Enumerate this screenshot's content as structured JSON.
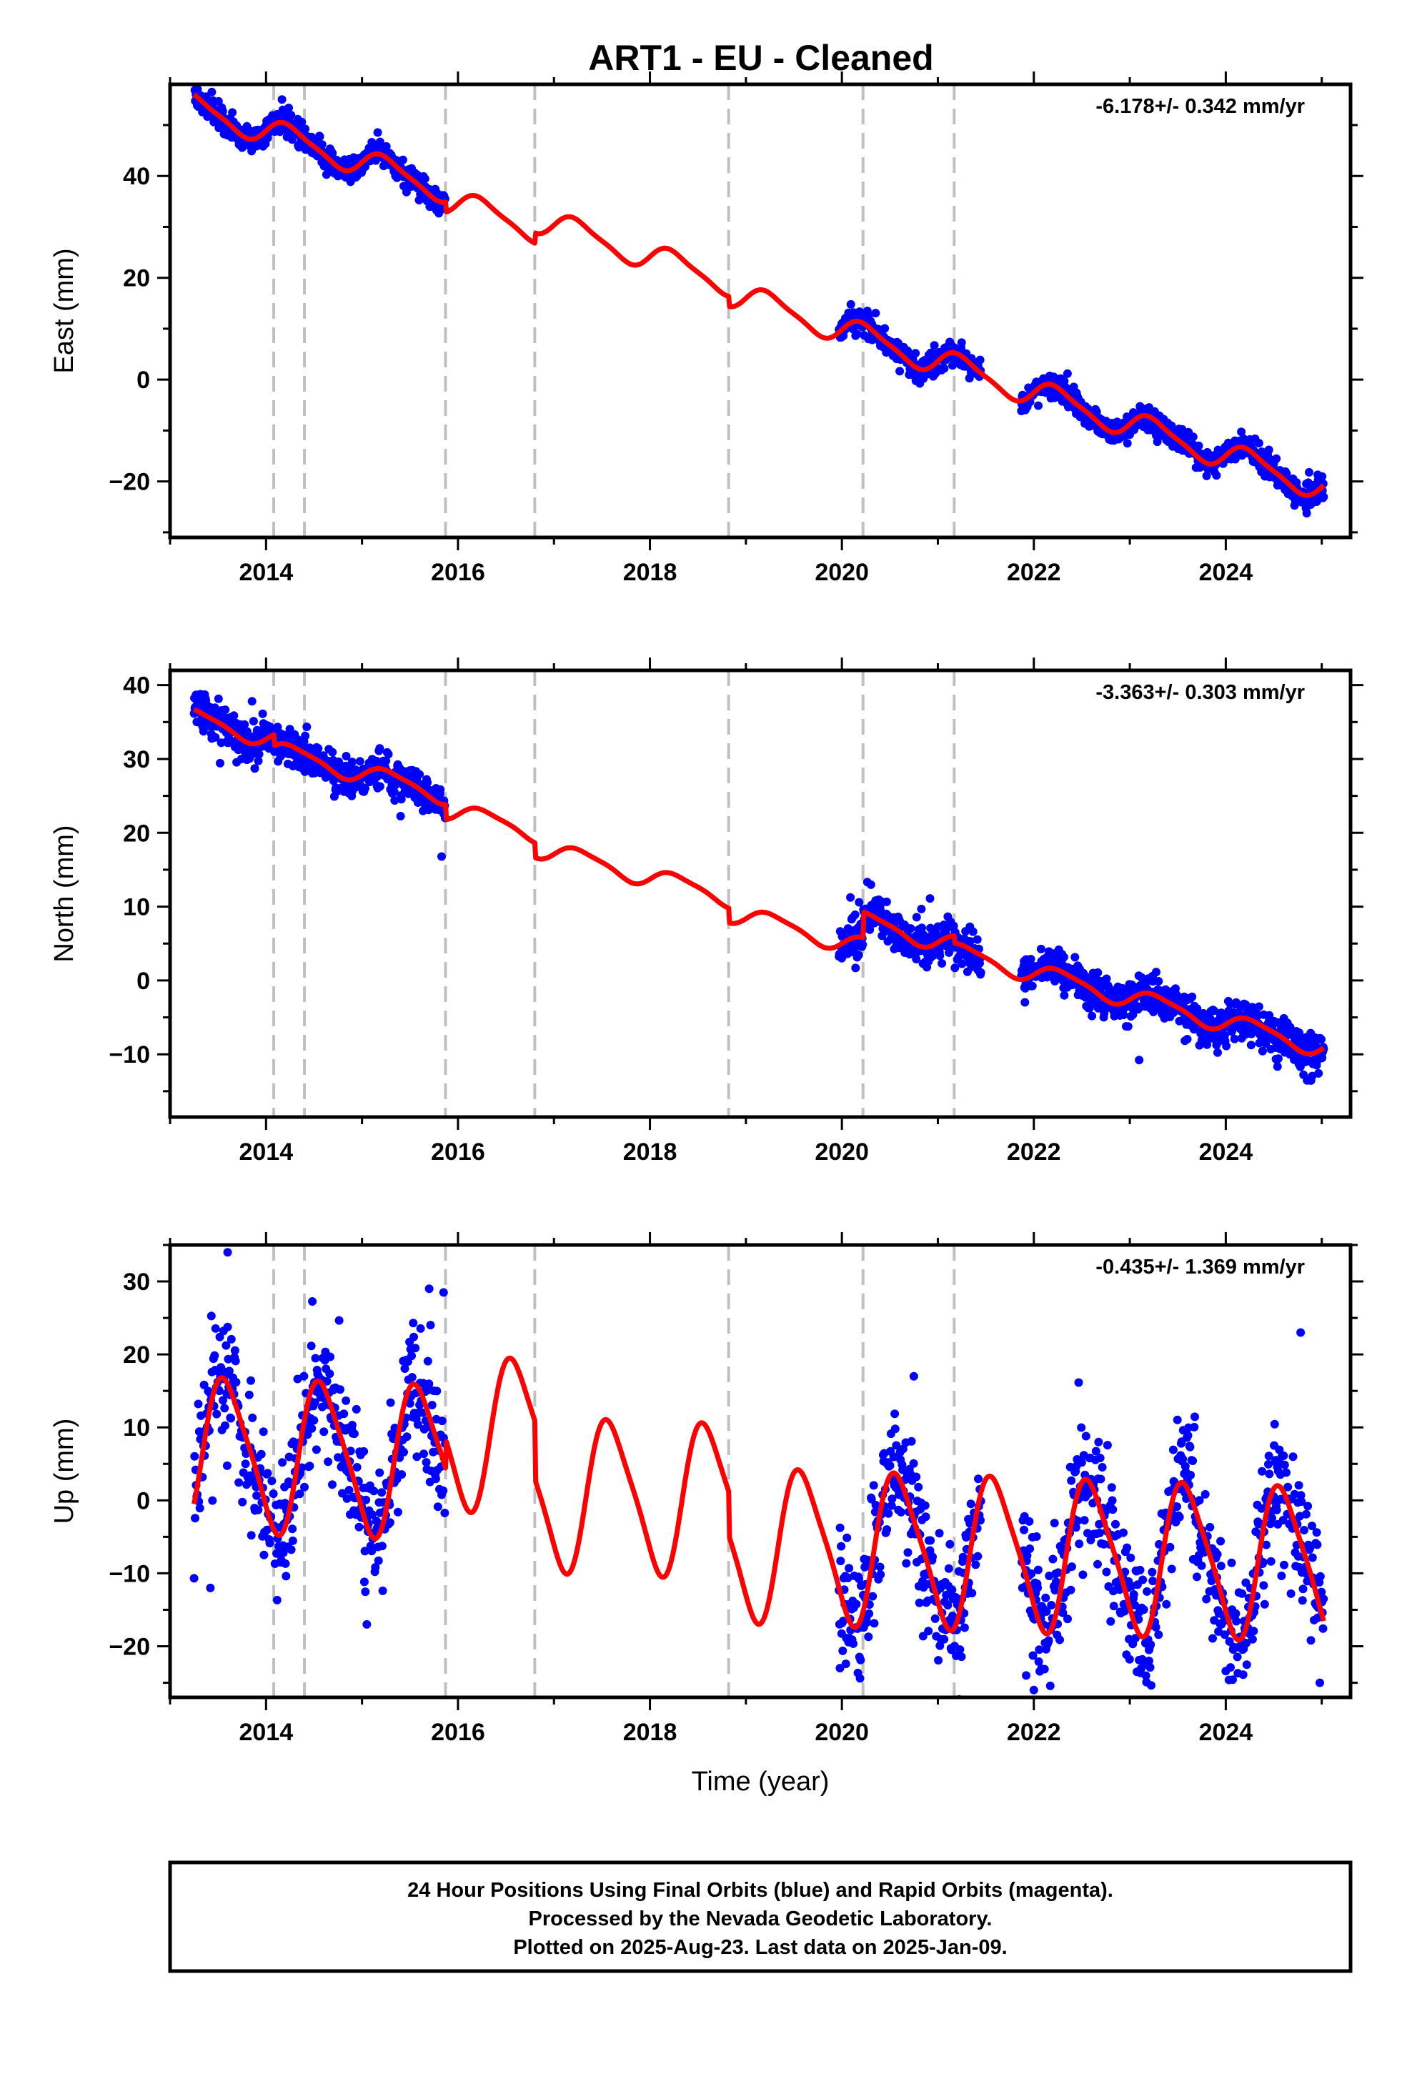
{
  "title": "ART1  - EU - Cleaned",
  "footer": {
    "lines": [
      "24 Hour Positions Using Final Orbits (blue) and Rapid Orbits (magenta).",
      "Processed by the Nevada Geodetic Laboratory.",
      "Plotted on 2025-Aug-23. Last data on 2025-Jan-09."
    ]
  },
  "colors": {
    "data": "#0000ff",
    "model": "#ff0000",
    "events": "#c0c0c0",
    "frame": "#000000"
  },
  "chart_data": [
    {
      "type": "scatter",
      "component": "east",
      "ylabel": "East (mm)",
      "xlabel": "",
      "rate_label": "-6.178+/- 0.342 mm/yr",
      "xlim": [
        2013.0,
        2025.3
      ],
      "ylim": [
        -31,
        58
      ],
      "xticks": [
        2014,
        2016,
        2018,
        2020,
        2022,
        2024
      ],
      "yticks": [
        -20,
        0,
        20,
        40
      ],
      "event_lines": [
        2014.08,
        2014.4,
        2015.87,
        2016.8,
        2018.82,
        2020.22,
        2021.17
      ],
      "data_segments": [
        [
          2013.25,
          2015.87
        ],
        [
          2019.97,
          2021.45
        ],
        [
          2021.87,
          2025.02
        ]
      ],
      "model": {
        "start": 2013.25,
        "end": 2025.02,
        "ref_epoch": 2013.25,
        "intercept": 53.5,
        "rate": -6.178,
        "annual_cos": 0.0,
        "annual_sin": 2.5,
        "semiannual_cos": 0.0,
        "semiannual_sin": 0.6,
        "offsets": [
          {
            "t": 2015.87,
            "d": -2
          },
          {
            "t": 2016.8,
            "d": 2
          },
          {
            "t": 2018.82,
            "d": -2
          }
        ]
      },
      "scatter_sigma": 1.2,
      "outliers": []
    },
    {
      "type": "scatter",
      "component": "north",
      "ylabel": "North (mm)",
      "xlabel": "",
      "rate_label": "-3.363+/- 0.303 mm/yr",
      "xlim": [
        2013.0,
        2025.3
      ],
      "ylim": [
        -18.5,
        42
      ],
      "xticks": [
        2014,
        2016,
        2018,
        2020,
        2022,
        2024
      ],
      "yticks": [
        -10,
        0,
        10,
        20,
        30,
        40
      ],
      "event_lines": [
        2014.08,
        2014.4,
        2015.87,
        2016.8,
        2018.82,
        2020.22,
        2021.17
      ],
      "data_segments": [
        [
          2013.25,
          2015.87
        ],
        [
          2019.97,
          2021.45
        ],
        [
          2021.87,
          2025.02
        ]
      ],
      "model": {
        "start": 2013.25,
        "end": 2025.02,
        "ref_epoch": 2013.25,
        "intercept": 35.5,
        "rate": -3.363,
        "annual_cos": -0.3,
        "annual_sin": 1.2,
        "semiannual_cos": 0.0,
        "semiannual_sin": 0.3,
        "offsets": [
          {
            "t": 2014.08,
            "d": -1.5
          },
          {
            "t": 2015.87,
            "d": -2
          },
          {
            "t": 2016.8,
            "d": -2
          },
          {
            "t": 2018.82,
            "d": -2
          },
          {
            "t": 2020.22,
            "d": 3.5
          },
          {
            "t": 2021.17,
            "d": -1
          }
        ]
      },
      "scatter_sigma": 1.3,
      "outliers": []
    },
    {
      "type": "scatter",
      "component": "up",
      "ylabel": "Up (mm)",
      "xlabel": "Time (year)",
      "rate_label": "-0.435+/- 1.369 mm/yr",
      "xlim": [
        2013.0,
        2025.3
      ],
      "ylim": [
        -27,
        35
      ],
      "xticks": [
        2014,
        2016,
        2018,
        2020,
        2022,
        2024
      ],
      "yticks": [
        -20,
        -10,
        0,
        10,
        20,
        30
      ],
      "event_lines": [
        2014.08,
        2014.4,
        2015.87,
        2016.8,
        2018.82,
        2020.22,
        2021.17
      ],
      "data_segments": [
        [
          2013.25,
          2015.87
        ],
        [
          2019.97,
          2021.45
        ],
        [
          2021.87,
          2025.02
        ]
      ],
      "model": {
        "start": 2013.25,
        "end": 2025.02,
        "ref_epoch": 2013.25,
        "intercept": 6.5,
        "rate": -0.435,
        "annual_cos": -8.5,
        "annual_sin": -5.5,
        "semiannual_cos": 1.5,
        "semiannual_sin": -1.0,
        "offsets": [
          {
            "t": 2015.87,
            "d": 4
          },
          {
            "t": 2016.8,
            "d": -8
          },
          {
            "t": 2018.82,
            "d": -6
          }
        ]
      },
      "scatter_sigma": 4.5,
      "outliers": [
        {
          "x": 2013.6,
          "y": 34
        },
        {
          "x": 2013.42,
          "y": -12
        },
        {
          "x": 2015.85,
          "y": 28.5
        },
        {
          "x": 2015.7,
          "y": 29
        },
        {
          "x": 2015.05,
          "y": -17
        },
        {
          "x": 2019.98,
          "y": -23
        },
        {
          "x": 2021.92,
          "y": -24
        },
        {
          "x": 2022.0,
          "y": -26
        },
        {
          "x": 2024.78,
          "y": 23
        },
        {
          "x": 2024.98,
          "y": -25
        },
        {
          "x": 2023.2,
          "y": -22
        },
        {
          "x": 2020.75,
          "y": 17
        }
      ]
    }
  ]
}
